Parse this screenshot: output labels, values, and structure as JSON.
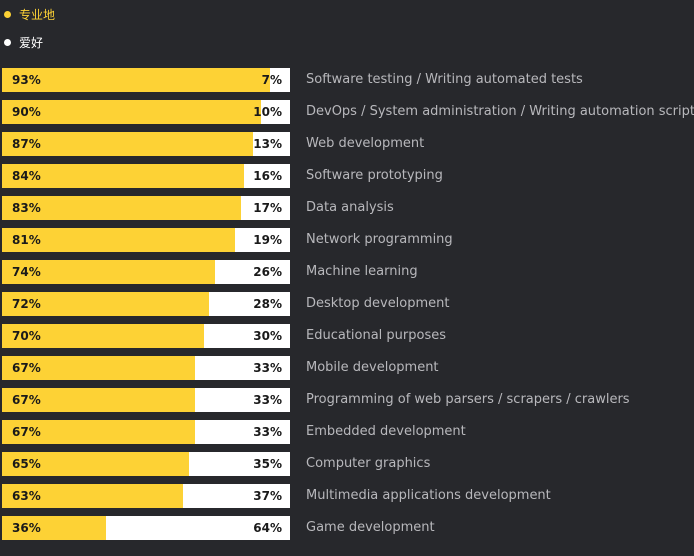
{
  "chart_data": {
    "type": "bar",
    "stacked": true,
    "orientation": "horizontal",
    "legend_position": "top-left",
    "colors": {
      "background": "#27282c",
      "series_1": "#fdd235",
      "series_2": "#ffffff"
    },
    "series": [
      {
        "name": "专业地",
        "values": [
          93,
          90,
          87,
          84,
          83,
          81,
          74,
          72,
          70,
          67,
          67,
          67,
          65,
          63,
          36
        ]
      },
      {
        "name": "爱好",
        "values": [
          7,
          10,
          13,
          16,
          17,
          19,
          26,
          28,
          30,
          33,
          33,
          33,
          35,
          37,
          64
        ]
      }
    ],
    "categories": [
      "Software testing / Writing automated tests",
      "DevOps / System administration / Writing automation scripts",
      "Web development",
      "Software prototyping",
      "Data analysis",
      "Network programming",
      "Machine learning",
      "Desktop development",
      "Educational purposes",
      "Mobile development",
      "Programming of web parsers / scrapers / crawlers",
      "Embedded development",
      "Computer graphics",
      "Multimedia applications development",
      "Game development"
    ],
    "unit": "%"
  }
}
